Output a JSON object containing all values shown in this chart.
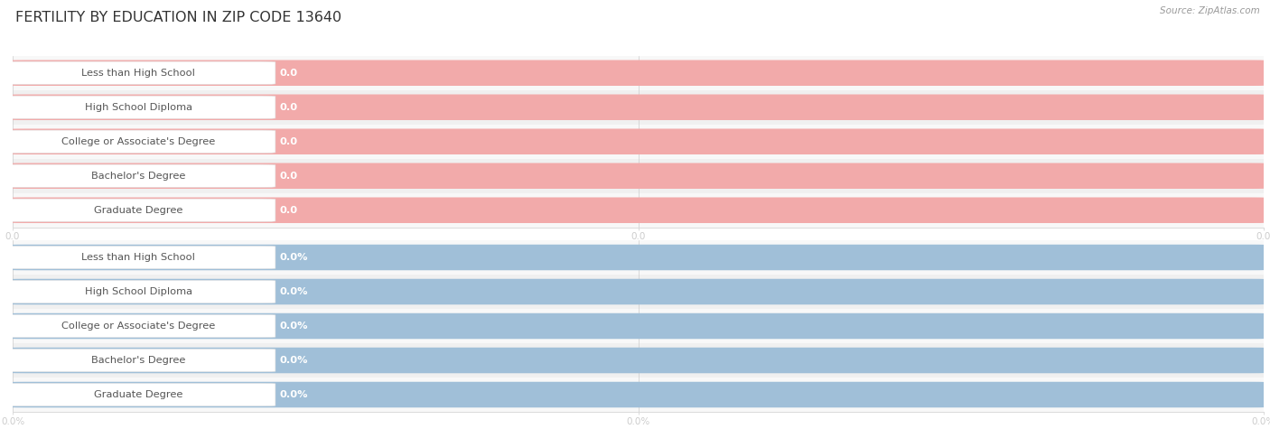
{
  "title": "FERTILITY BY EDUCATION IN ZIP CODE 13640",
  "source": "Source: ZipAtlas.com",
  "categories": [
    "Less than High School",
    "High School Diploma",
    "College or Associate's Degree",
    "Bachelor's Degree",
    "Graduate Degree"
  ],
  "top_values": [
    0.0,
    0.0,
    0.0,
    0.0,
    0.0
  ],
  "bottom_values": [
    0.0,
    0.0,
    0.0,
    0.0,
    0.0
  ],
  "top_bar_fill": "#f2aaaa",
  "top_bar_bg": "#f2aaaa",
  "bottom_bar_fill": "#a0bfd8",
  "bottom_bar_bg": "#a0bfd8",
  "row_colors": [
    "#f8f8f8",
    "#f0f0f0"
  ],
  "label_box_bg": "#ffffff",
  "label_box_border": "#dddddd",
  "label_text_color": "#555555",
  "value_text_color": "#ffffff",
  "title_color": "#333333",
  "source_color": "#999999",
  "grid_color": "#cccccc",
  "xtick_color": "#aaaaaa",
  "top_xtick_labels": [
    "0.0",
    "0.0",
    "0.0"
  ],
  "bottom_xtick_labels": [
    "0.0%",
    "0.0%",
    "0.0%"
  ]
}
